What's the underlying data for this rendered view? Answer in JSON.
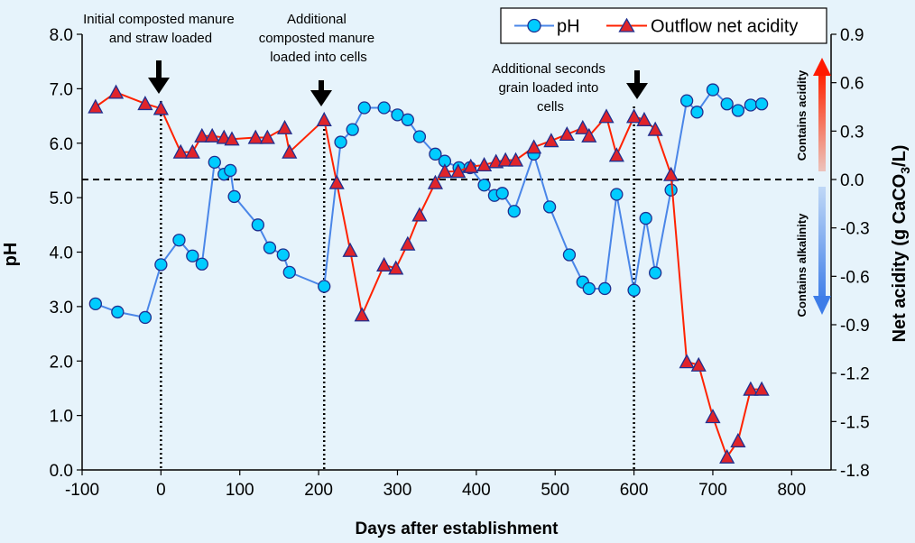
{
  "chart_data": {
    "type": "line",
    "xlabel": "Days after establishment",
    "ylabel_left": "pH",
    "ylabel_right_prefix": "Net acidity (g CaCO",
    "ylabel_right_sub": "3",
    "ylabel_right_suffix": "/L)",
    "xlim": [
      -100,
      850
    ],
    "ylim_left": [
      0,
      8
    ],
    "ylim_right": [
      -1.8,
      0.9
    ],
    "x_ticks": [
      -100,
      0,
      100,
      200,
      300,
      400,
      500,
      600,
      700,
      800
    ],
    "x_tick_labels": [
      "-100",
      "0",
      "100",
      "200",
      "300",
      "400",
      "500",
      "600",
      "700",
      "800"
    ],
    "y_left_ticks": [
      0,
      1,
      2,
      3,
      4,
      5,
      6,
      7,
      8
    ],
    "y_left_tick_labels": [
      "0.0",
      "1.0",
      "2.0",
      "3.0",
      "4.0",
      "5.0",
      "6.0",
      "7.0",
      "8.0"
    ],
    "y_right_ticks": [
      -1.8,
      -1.5,
      -1.2,
      -0.9,
      -0.6,
      -0.3,
      0,
      0.3,
      0.6,
      0.9
    ],
    "y_right_tick_labels": [
      "-1.8",
      "-1.5",
      "-1.2",
      "-0.9",
      "-0.6",
      "-0.3",
      "0.0",
      "0.3",
      "0.6",
      "0.9"
    ],
    "legend_position": "top-right",
    "zero_reference_line": "dashed at net acidity 0.0",
    "series": [
      {
        "name": "pH",
        "axis": "left",
        "color": "#4a86e8",
        "marker": "circle",
        "marker_fill": "#00ccff",
        "x": [
          -83,
          -55,
          -20,
          0,
          23,
          40,
          52,
          68,
          80,
          88,
          93,
          123,
          138,
          155,
          163,
          207,
          228,
          243,
          258,
          283,
          300,
          313,
          328,
          348,
          360,
          378,
          392,
          410,
          423,
          433,
          448,
          473,
          493,
          518,
          535,
          543,
          563,
          578,
          600,
          615,
          627,
          647,
          667,
          680,
          700,
          718,
          732,
          748,
          762
        ],
        "values": [
          3.05,
          2.9,
          2.8,
          3.77,
          4.22,
          3.93,
          3.78,
          5.65,
          5.43,
          5.5,
          5.02,
          4.5,
          4.08,
          3.95,
          3.63,
          3.37,
          6.02,
          6.25,
          6.65,
          6.65,
          6.52,
          6.43,
          6.12,
          5.8,
          5.67,
          5.55,
          5.55,
          5.23,
          5.04,
          5.08,
          4.75,
          5.8,
          4.83,
          3.95,
          3.45,
          3.33,
          3.33,
          5.06,
          3.3,
          4.62,
          3.62,
          5.14,
          6.78,
          6.57,
          6.98,
          6.72,
          6.6,
          6.7,
          6.72
        ]
      },
      {
        "name": "Outflow net acidity",
        "axis": "right",
        "color": "#ff2200",
        "marker": "triangle",
        "marker_fill": "#e0242a",
        "x": [
          -83,
          -57,
          -20,
          0,
          25,
          40,
          52,
          65,
          80,
          90,
          120,
          135,
          157,
          163,
          207,
          223,
          240,
          255,
          283,
          298,
          313,
          328,
          348,
          360,
          377,
          393,
          410,
          425,
          437,
          450,
          473,
          495,
          515,
          535,
          543,
          565,
          578,
          600,
          613,
          627,
          647,
          667,
          682,
          700,
          718,
          732,
          748,
          762
        ],
        "values": [
          0.45,
          0.54,
          0.47,
          0.44,
          0.17,
          0.17,
          0.27,
          0.27,
          0.26,
          0.25,
          0.26,
          0.26,
          0.32,
          0.17,
          0.37,
          -0.02,
          -0.44,
          -0.84,
          -0.53,
          -0.55,
          -0.4,
          -0.22,
          -0.02,
          0.05,
          0.05,
          0.08,
          0.09,
          0.11,
          0.12,
          0.12,
          0.2,
          0.24,
          0.28,
          0.32,
          0.27,
          0.39,
          0.15,
          0.39,
          0.37,
          0.31,
          0.03,
          -1.13,
          -1.15,
          -1.47,
          -1.72,
          -1.62,
          -1.3,
          -1.3
        ]
      }
    ],
    "vertical_markers": [
      0,
      207,
      600
    ],
    "annotations": [
      {
        "lines": [
          "Initial composted manure",
          "and straw loaded"
        ]
      },
      {
        "lines": [
          "Additional",
          "composted manure",
          "loaded into cells"
        ]
      },
      {
        "lines": [
          "Additional seconds",
          "grain loaded into",
          "cells"
        ]
      }
    ],
    "arrow_labels": {
      "acidity": "Contains acidity",
      "alkalinity": "Contains alkalinity",
      "acidity_color": "#ff1a00",
      "alkalinity_color": "#3d7de8"
    }
  }
}
